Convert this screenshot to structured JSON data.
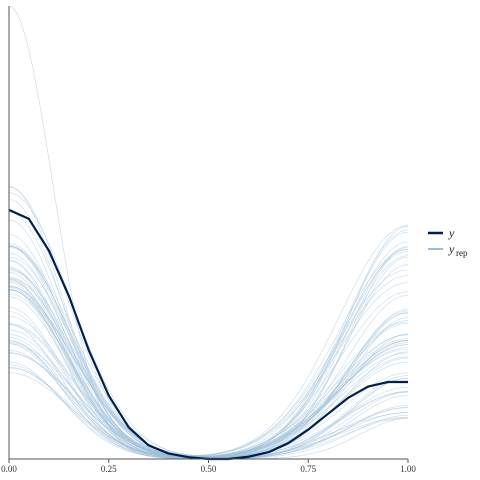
{
  "chart_data": {
    "type": "line",
    "subtype": "posterior-predictive-density-overlay",
    "x": [
      0.0,
      0.05,
      0.1,
      0.15,
      0.2,
      0.25,
      0.3,
      0.35,
      0.4,
      0.45,
      0.5,
      0.55,
      0.6,
      0.65,
      0.7,
      0.75,
      0.8,
      0.85,
      0.9,
      0.95,
      1.0
    ],
    "xlim": [
      0.0,
      1.0
    ],
    "x_ticks": [
      "0.00",
      "0.25",
      "0.50",
      "0.75",
      "1.00"
    ],
    "ylim": [
      0.0,
      1.0
    ],
    "y_axis_ticks": "none",
    "grid": false,
    "legend_position": "right",
    "legend": [
      {
        "label": "y",
        "subscript": "",
        "color": "#011f4b"
      },
      {
        "label": "y",
        "subscript": "rep",
        "color": "#9bbdd9"
      }
    ],
    "series": [
      {
        "role": "y",
        "color": "#011f4b",
        "values": [
          0.55,
          0.53,
          0.46,
          0.36,
          0.24,
          0.14,
          0.07,
          0.03,
          0.012,
          0.004,
          0.0,
          0.0,
          0.005,
          0.015,
          0.035,
          0.065,
          0.1,
          0.135,
          0.16,
          0.17,
          0.17
        ]
      }
    ],
    "replicates": {
      "role": "y_rep",
      "color": "#9bbdd9",
      "count": 60,
      "left_peak_range": [
        0.18,
        0.62
      ],
      "right_peak_range": [
        0.08,
        0.52
      ],
      "outlier_left_peak": 1.0
    }
  }
}
